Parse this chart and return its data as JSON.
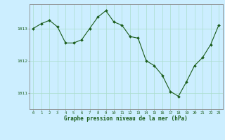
{
  "x": [
    0,
    1,
    2,
    3,
    4,
    5,
    6,
    7,
    8,
    9,
    10,
    11,
    12,
    13,
    14,
    15,
    16,
    17,
    18,
    19,
    20,
    21,
    22,
    23
  ],
  "y": [
    1013.0,
    1013.15,
    1013.25,
    1013.05,
    1012.55,
    1012.55,
    1012.65,
    1013.0,
    1013.35,
    1013.55,
    1013.2,
    1013.1,
    1012.75,
    1012.7,
    1012.0,
    1011.85,
    1011.55,
    1011.05,
    1010.9,
    1011.35,
    1011.85,
    1012.1,
    1012.5,
    1013.1
  ],
  "line_color": "#1a5c1a",
  "marker_color": "#1a5c1a",
  "bg_color": "#cceeff",
  "grid_color": "#aaddcc",
  "xlabel": "Graphe pression niveau de la mer (hPa)",
  "xlabel_color": "#1a5c1a",
  "tick_color": "#1a5c1a",
  "axis_color": "#888888",
  "ylim": [
    1010.5,
    1013.75
  ],
  "yticks": [
    1011,
    1012,
    1013
  ],
  "xlim": [
    -0.5,
    23.5
  ],
  "figsize": [
    3.2,
    2.0
  ],
  "dpi": 100
}
